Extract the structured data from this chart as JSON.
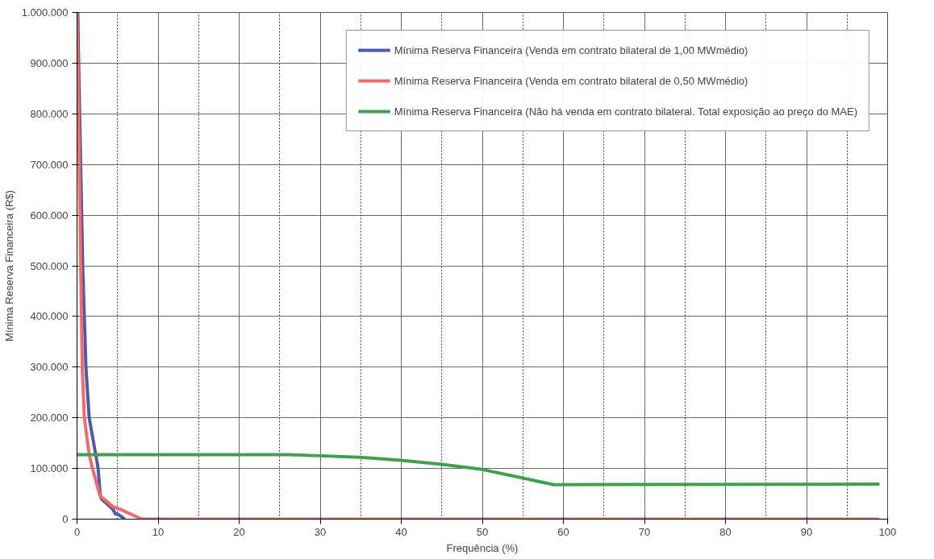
{
  "chart_data": {
    "type": "line",
    "xlabel": "Frequência (%)",
    "ylabel": "Mínima Reserva Financeira (R$)",
    "xlim": [
      0,
      100
    ],
    "xticks": [
      0,
      10,
      20,
      30,
      40,
      50,
      60,
      70,
      80,
      90,
      100
    ],
    "ylim": [
      0,
      1000000
    ],
    "yticks": [
      {
        "value": 0,
        "label": "0"
      },
      {
        "value": 100000,
        "label": "100.000"
      },
      {
        "value": 200000,
        "label": "200.000"
      },
      {
        "value": 300000,
        "label": "300.000"
      },
      {
        "value": 400000,
        "label": "400.000"
      },
      {
        "value": 500000,
        "label": "500.000"
      },
      {
        "value": 600000,
        "label": "600.000"
      },
      {
        "value": 700000,
        "label": "700.000"
      },
      {
        "value": 800000,
        "label": "800.000"
      },
      {
        "value": 900000,
        "label": "900.000"
      },
      {
        "value": 1000000,
        "label": "1.000.000"
      }
    ],
    "grid": true,
    "legend": "top right",
    "marker": "none",
    "line_style": "solid",
    "series": [
      {
        "name": "Mínima Reserva Financeira (Venda em contrato bilateral de 1,00 MWmédio)",
        "color": "#4d5aa8",
        "x": [
          0.1,
          0.2,
          0.7,
          1.1,
          1.5,
          2.3,
          2.6,
          2.85,
          3.0,
          4.4,
          4.75,
          5.0,
          5.9
        ],
        "values": [
          1000000,
          900000,
          500000,
          300000,
          200000,
          128000,
          100000,
          50000,
          40000,
          20000,
          10000,
          10000,
          0
        ]
      },
      {
        "name": "Mínima Reserva Financeira (Venda em contrato bilateral de 0,50 MWmédio)",
        "color": "#f26a6a",
        "x": [
          0,
          0.1,
          0.45,
          0.65,
          0.9,
          1.5,
          1.9,
          2.85,
          4.4,
          5.5,
          8.0,
          99
        ],
        "values": [
          1000000,
          900000,
          500000,
          300000,
          200000,
          128000,
          100000,
          46000,
          25000,
          18000,
          0,
          0
        ]
      },
      {
        "name": "Mínima Reserva Financeira (Não há venda em contrato bilateral. Total exposição ao preço do MAE)",
        "color": "#3fa050",
        "x": [
          0,
          26.2,
          30,
          35,
          40,
          45,
          50,
          55,
          58.8,
          99
        ],
        "values": [
          127000,
          127000,
          125000,
          122000,
          116000,
          108000,
          98000,
          81000,
          68000,
          69000
        ]
      }
    ]
  }
}
